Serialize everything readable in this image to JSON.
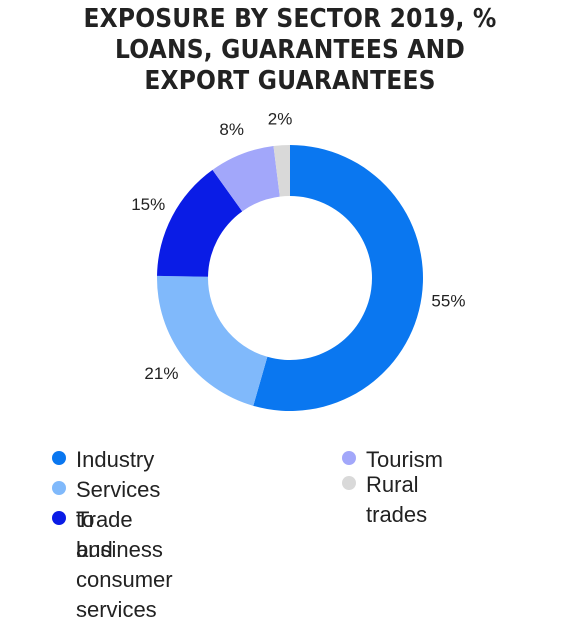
{
  "title_lines": [
    "EXPOSURE BY SECTOR 2019, %",
    "LOANS, GUARANTEES AND",
    "EXPORT GUARANTEES"
  ],
  "chart_data": {
    "type": "pie",
    "style": "donut",
    "unit": "%",
    "slices": [
      {
        "label": "Industry",
        "value": 55,
        "display": "55%",
        "color": "#0a77f0"
      },
      {
        "label": "Services to business",
        "value": 21,
        "display": "21%",
        "color": "#80b9fb"
      },
      {
        "label": "Trade and consumer\nservices",
        "value": 15,
        "display": "15%",
        "color": "#0a1ce6"
      },
      {
        "label": "Tourism",
        "value": 8,
        "display": "8%",
        "color": "#a2a7fa"
      },
      {
        "label": "Rural trades",
        "value": 2,
        "display": "2%",
        "color": "#d9d9d9"
      }
    ],
    "legend": {
      "position": "bottom"
    }
  }
}
